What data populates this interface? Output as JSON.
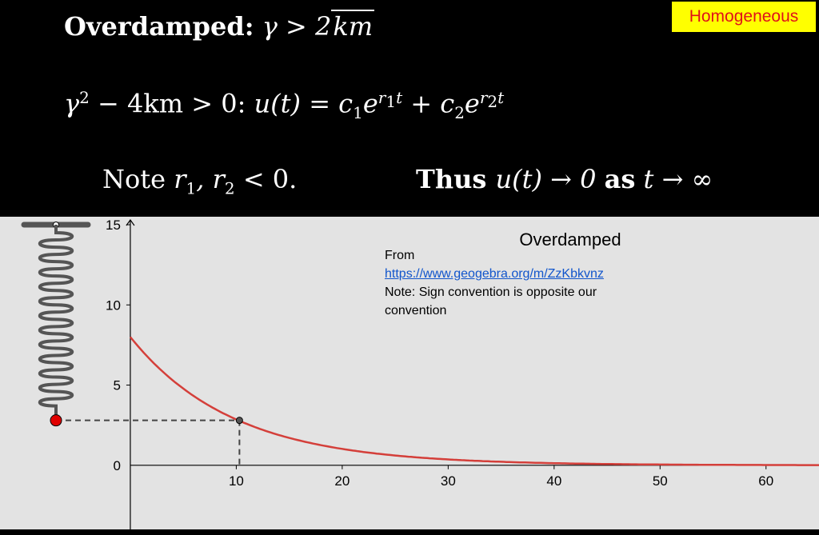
{
  "slide": {
    "tag": "Homogeneous",
    "line1": {
      "label": "Overdamped:",
      "condition": "γ > 2",
      "sqrt": "km"
    },
    "line2": {
      "lhs": "γ",
      "lhs_exp": "2",
      "rest": " − 4km > 0: ",
      "func": "u(t) = c",
      "c1": "1",
      "e": "e",
      "r1": "r",
      "r1sub": "1",
      "t": "t",
      "plus": " + c",
      "c2": "2",
      "r2sub": "2"
    },
    "line3": {
      "text": "Note ",
      "r": "r",
      "sub1": "1",
      "comma": ", r",
      "sub2": "2",
      "tail": " < 0."
    },
    "line4": {
      "thus": "Thus ",
      "ut": "u(t) → 0 ",
      "as": "as",
      "tail": " t → ∞"
    }
  },
  "note": {
    "from": "From",
    "link": "https://www.geogebra.org/m/ZzKbkvnz",
    "text": "Note: Sign convention is opposite our convention"
  },
  "chart_data": {
    "type": "line",
    "title": "Overdamped",
    "xlabel": "",
    "ylabel": "",
    "xlim": [
      -12.3,
      65
    ],
    "ylim": [
      -4,
      15.5
    ],
    "x_ticks": [
      10,
      20,
      30,
      40,
      50,
      60
    ],
    "y_ticks": [
      0,
      5,
      10,
      15
    ],
    "grid": false,
    "series": [
      {
        "color": "#d43f3a",
        "equation": "u(t) = 8·e^(-0.103·t)",
        "x_range": [
          0,
          65
        ]
      }
    ],
    "marker": {
      "x": 10.3,
      "y": 2.8
    },
    "spring": {
      "top_y": 15,
      "mass_y": 2.8,
      "color": "#555555",
      "mass_color": "#e00000"
    }
  }
}
